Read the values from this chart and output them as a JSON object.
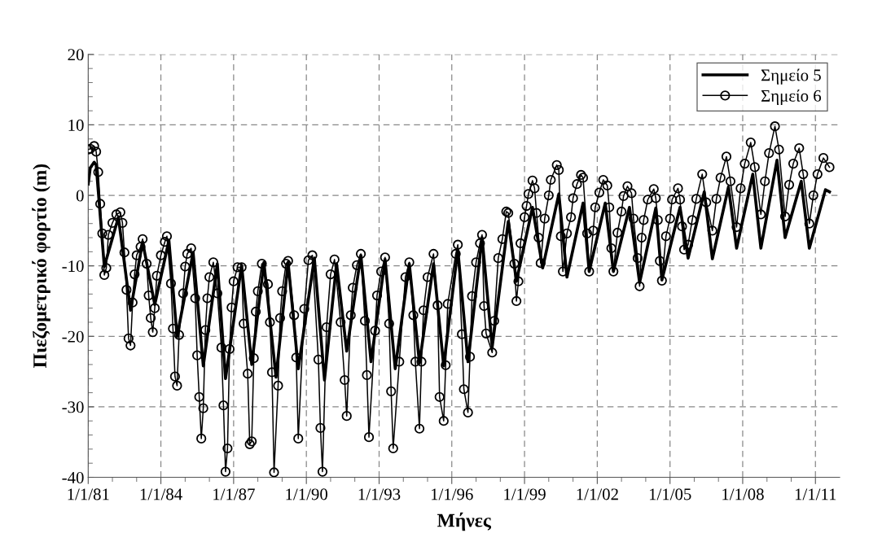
{
  "chart_data": {
    "type": "line",
    "xlabel": "Μήνες",
    "ylabel": "Πιεζομετρικό φορτίο (m)",
    "xlim": [
      "1981-01-01",
      "2012-01-01"
    ],
    "ylim": [
      -40,
      20
    ],
    "xticks": [
      {
        "value": "1981-01-01",
        "label": "1/1/81"
      },
      {
        "value": "1982-01-01",
        "label": null
      },
      {
        "value": "1983-01-01",
        "label": null
      },
      {
        "value": "1984-01-01",
        "label": "1/1/84"
      },
      {
        "value": "1985-01-01",
        "label": null
      },
      {
        "value": "1986-01-01",
        "label": null
      },
      {
        "value": "1987-01-01",
        "label": "1/1/87"
      },
      {
        "value": "1988-01-01",
        "label": null
      },
      {
        "value": "1989-01-01",
        "label": null
      },
      {
        "value": "1990-01-01",
        "label": "1/1/90"
      },
      {
        "value": "1991-01-01",
        "label": null
      },
      {
        "value": "1992-01-01",
        "label": null
      },
      {
        "value": "1993-01-01",
        "label": "1/1/93"
      },
      {
        "value": "1994-01-01",
        "label": null
      },
      {
        "value": "1995-01-01",
        "label": null
      },
      {
        "value": "1996-01-01",
        "label": "1/1/96"
      },
      {
        "value": "1997-01-01",
        "label": null
      },
      {
        "value": "1998-01-01",
        "label": null
      },
      {
        "value": "1999-01-01",
        "label": "1/1/99"
      },
      {
        "value": "2000-01-01",
        "label": null
      },
      {
        "value": "2001-01-01",
        "label": null
      },
      {
        "value": "2002-01-01",
        "label": "1/1/02"
      },
      {
        "value": "2003-01-01",
        "label": null
      },
      {
        "value": "2004-01-01",
        "label": null
      },
      {
        "value": "2005-01-01",
        "label": "1/1/05"
      },
      {
        "value": "2006-01-01",
        "label": null
      },
      {
        "value": "2007-01-01",
        "label": null
      },
      {
        "value": "2008-01-01",
        "label": "1/1/08"
      },
      {
        "value": "2009-01-01",
        "label": null
      },
      {
        "value": "2010-01-01",
        "label": null
      },
      {
        "value": "2011-01-01",
        "label": "1/1/11"
      }
    ],
    "yticks": [
      -40,
      {
        "value": -38,
        "label": null
      },
      {
        "value": -36,
        "label": null
      },
      {
        "value": -34,
        "label": null
      },
      {
        "value": -32,
        "label": null
      },
      -30,
      {
        "value": -28,
        "label": null
      },
      {
        "value": -26,
        "label": null
      },
      {
        "value": -24,
        "label": null
      },
      {
        "value": -22,
        "label": null
      },
      -20,
      {
        "value": -18,
        "label": null
      },
      {
        "value": -16,
        "label": null
      },
      {
        "value": -14,
        "label": null
      },
      {
        "value": -12,
        "label": null
      },
      -10,
      {
        "value": -8,
        "label": null
      },
      {
        "value": -6,
        "label": null
      },
      {
        "value": -4,
        "label": null
      },
      {
        "value": -2,
        "label": null
      },
      0,
      {
        "value": 2,
        "label": null
      },
      {
        "value": 4,
        "label": null
      },
      {
        "value": 6,
        "label": null
      },
      {
        "value": 8,
        "label": null
      },
      10,
      {
        "value": 12,
        "label": null
      },
      {
        "value": 14,
        "label": null
      },
      {
        "value": 16,
        "label": null
      },
      {
        "value": 18,
        "label": null
      },
      20
    ],
    "grid": true,
    "legend": "top right",
    "series": [
      {
        "name": "Σημείο 5",
        "color": "#000000",
        "marker": "none",
        "line_style": "solid",
        "x": [
          "1981-01",
          "1981-02",
          "1981-04",
          "1981-05",
          "1981-09",
          "1982-04",
          "1982-10",
          "1983-04",
          "1983-10",
          "1984-05",
          "1984-09",
          "1985-05",
          "1985-10",
          "1986-05",
          "1986-09",
          "1987-05",
          "1987-10",
          "1988-04",
          "1988-10",
          "1989-04",
          "1989-09",
          "1990-05",
          "1990-10",
          "1991-04",
          "1991-09",
          "1992-04",
          "1992-09",
          "1993-04",
          "1993-09",
          "1994-04",
          "1994-09",
          "1995-04",
          "1995-09",
          "1996-04",
          "1996-09",
          "1997-04",
          "1997-09",
          "1998-05",
          "1998-09",
          "1999-05",
          "1999-10",
          "2000-06",
          "2000-10",
          "2001-06",
          "2001-09",
          "2002-05",
          "2002-09",
          "2003-05",
          "2003-10",
          "2004-06",
          "2004-09",
          "2005-06",
          "2005-10",
          "2006-06",
          "2006-10",
          "2007-06",
          "2007-10",
          "2008-06",
          "2008-10",
          "2009-06",
          "2009-10",
          "2010-06",
          "2010-10",
          "2011-06",
          "2011-08"
        ],
        "values": [
          1.6,
          3.9,
          4.7,
          4.3,
          -10.1,
          -3.1,
          -16.3,
          -6.6,
          -15.5,
          -6.4,
          -20,
          -8.1,
          -24.2,
          -9.7,
          -26,
          -9.9,
          -24,
          -9.5,
          -25.8,
          -9.5,
          -24.6,
          -8.9,
          -26.2,
          -9.7,
          -22.1,
          -8.5,
          -23.6,
          -9.1,
          -24.6,
          -9.7,
          -23.8,
          -9.7,
          -24.2,
          -7.7,
          -23.6,
          -6.0,
          -21.5,
          -3.7,
          -12.2,
          -1.7,
          -10.3,
          0.2,
          -11.6,
          -1.1,
          -10.8,
          -1.1,
          -10.8,
          -1.7,
          -12.4,
          -1.8,
          -12.0,
          -1.7,
          -8.9,
          0.5,
          -9.0,
          1.2,
          -7.5,
          3.0,
          -7.5,
          5.0,
          -6.0,
          2.0,
          -7.5,
          0.8,
          0.5
        ]
      },
      {
        "name": "Σημείο 6",
        "color": "#000000",
        "marker": "circle",
        "line_style": "solid",
        "x": [
          "1981-01",
          "1981-02",
          "1981-04",
          "1981-05",
          "1981-06",
          "1981-07",
          "1981-08",
          "1981-09",
          "1981-10",
          "1981-11",
          "1982-01",
          "1982-03",
          "1982-05",
          "1982-06",
          "1982-07",
          "1982-08",
          "1982-09",
          "1982-10",
          "1982-11",
          "1982-12",
          "1983-01",
          "1983-03",
          "1983-04",
          "1983-06",
          "1983-07",
          "1983-08",
          "1983-09",
          "1983-10",
          "1983-11",
          "1984-01",
          "1984-03",
          "1984-04",
          "1984-06",
          "1984-07",
          "1984-08",
          "1984-09",
          "1984-10",
          "1984-12",
          "1985-01",
          "1985-02",
          "1985-04",
          "1985-06",
          "1985-07",
          "1985-08",
          "1985-09",
          "1985-10",
          "1985-11",
          "1985-12",
          "1986-01",
          "1986-03",
          "1986-05",
          "1986-07",
          "1986-08",
          "1986-09",
          "1986-10",
          "1986-11",
          "1986-12",
          "1987-01",
          "1987-03",
          "1987-05",
          "1987-06",
          "1987-08",
          "1987-09",
          "1987-10",
          "1987-11",
          "1987-12",
          "1988-01",
          "1988-03",
          "1988-06",
          "1988-07",
          "1988-08",
          "1988-09",
          "1988-11",
          "1988-12",
          "1989-01",
          "1989-03",
          "1989-04",
          "1989-07",
          "1989-08",
          "1989-09",
          "1989-12",
          "1990-02",
          "1990-04",
          "1990-07",
          "1990-08",
          "1990-09",
          "1990-11",
          "1991-01",
          "1991-03",
          "1991-06",
          "1991-08",
          "1991-09",
          "1991-11",
          "1991-12",
          "1992-02",
          "1992-04",
          "1992-06",
          "1992-07",
          "1992-08",
          "1992-11",
          "1992-12",
          "1993-02",
          "1993-04",
          "1993-06",
          "1993-07",
          "1993-08",
          "1993-11",
          "1994-02",
          "1994-04",
          "1994-06",
          "1994-07",
          "1994-09",
          "1994-10",
          "1994-11",
          "1995-01",
          "1995-04",
          "1995-06",
          "1995-07",
          "1995-09",
          "1995-10",
          "1995-11",
          "1996-03",
          "1996-04",
          "1996-06",
          "1996-07",
          "1996-09",
          "1996-10",
          "1996-11",
          "1997-01",
          "1997-03",
          "1997-04",
          "1997-05",
          "1997-06",
          "1997-09",
          "1997-10",
          "1997-12",
          "1998-02",
          "1998-04",
          "1998-05",
          "1998-08",
          "1998-09",
          "1998-10",
          "1998-11",
          "1999-01",
          "1999-02",
          "1999-03",
          "1999-05",
          "1999-06",
          "1999-07",
          "1999-08",
          "1999-09",
          "1999-11",
          "2000-01",
          "2000-02",
          "2000-05",
          "2000-06",
          "2000-07",
          "2000-08",
          "2000-10",
          "2000-12",
          "2001-01",
          "2001-03",
          "2001-05",
          "2001-06",
          "2001-08",
          "2001-09",
          "2001-11",
          "2001-12",
          "2002-02",
          "2002-04",
          "2002-06",
          "2002-07",
          "2002-08",
          "2002-09",
          "2002-11",
          "2003-01",
          "2003-02",
          "2003-04",
          "2003-06",
          "2003-07",
          "2003-09",
          "2003-10",
          "2003-11",
          "2003-12",
          "2004-02",
          "2004-05",
          "2004-06",
          "2004-07",
          "2004-08",
          "2004-09",
          "2004-11",
          "2005-01",
          "2005-02",
          "2005-05",
          "2005-06",
          "2005-07",
          "2005-08",
          "2005-10",
          "2005-12",
          "2006-02",
          "2006-05",
          "2006-07",
          "2006-10",
          "2006-12",
          "2007-02",
          "2007-05",
          "2007-07",
          "2007-10",
          "2007-12",
          "2008-02",
          "2008-05",
          "2008-07",
          "2008-10",
          "2008-12",
          "2009-02",
          "2009-05",
          "2009-07",
          "2009-10",
          "2009-12",
          "2010-02",
          "2010-05",
          "2010-07",
          "2010-10",
          "2010-12",
          "2011-02",
          "2011-05",
          "2011-08"
        ],
        "values": [
          6.5,
          6.6,
          7.0,
          6.2,
          3.3,
          -1.2,
          -5.4,
          -11.3,
          -10.3,
          -5.6,
          -3.9,
          -2.7,
          -2.4,
          -3.9,
          -8.1,
          -13.4,
          -20.3,
          -21.3,
          -15.2,
          -11.2,
          -8.5,
          -7.3,
          -6.2,
          -9.7,
          -14.2,
          -17.4,
          -19.4,
          -16.0,
          -11.4,
          -8.5,
          -6.6,
          -5.8,
          -12.5,
          -18.9,
          -25.7,
          -27.0,
          -19.8,
          -13.9,
          -10.1,
          -8.3,
          -7.5,
          -14.6,
          -22.7,
          -28.6,
          -34.5,
          -30.2,
          -19.1,
          -14.6,
          -11.6,
          -9.5,
          -13.9,
          -21.6,
          -29.8,
          -39.2,
          -35.9,
          -21.8,
          -15.9,
          -12.2,
          -10.2,
          -10.2,
          -18.2,
          -25.3,
          -35.3,
          -34.9,
          -23.1,
          -16.5,
          -13.6,
          -9.7,
          -12.6,
          -18.0,
          -25.1,
          -39.3,
          -27.0,
          -17.4,
          -13.6,
          -9.7,
          -9.3,
          -17,
          -23,
          -34.5,
          -16.1,
          -9.2,
          -8.5,
          -23.3,
          -33,
          -39.2,
          -18.7,
          -11.2,
          -9.1,
          -18,
          -26.2,
          -31.3,
          -17,
          -13.1,
          -9.9,
          -8.3,
          -17.8,
          -25.5,
          -34.3,
          -19.2,
          -14.2,
          -10.8,
          -8.8,
          -18.2,
          -27.8,
          -35.9,
          -23.6,
          -11.6,
          -9.5,
          -17,
          -23.6,
          -33.1,
          -23.6,
          -16.3,
          -11.6,
          -8.3,
          -15.6,
          -28.6,
          -32,
          -24.1,
          -15.4,
          -8.3,
          -7.0,
          -19.7,
          -27.5,
          -30.8,
          -22.9,
          -14.3,
          -9.5,
          -6.8,
          -5.6,
          -15.7,
          -19.6,
          -22.3,
          -17.8,
          -8.9,
          -6.2,
          -2.3,
          -2.5,
          -9.7,
          -15.0,
          -12.2,
          -6.8,
          -3.1,
          -1.5,
          0.2,
          2.1,
          1.0,
          -2.5,
          -6.0,
          -9.6,
          -3.3,
          0.0,
          2.2,
          4.3,
          3.6,
          -5.8,
          -10.8,
          -5.4,
          -3.1,
          -0.4,
          1.6,
          2.9,
          2.5,
          -5.4,
          -10.8,
          -5.0,
          -1.7,
          0.4,
          2.2,
          1.4,
          -1.7,
          -7.5,
          -10.8,
          -5.3,
          -2.3,
          -0.1,
          1.3,
          0.3,
          -3.3,
          -8.9,
          -12.9,
          -6.0,
          -3.5,
          -0.6,
          0.9,
          -0.4,
          -3.5,
          -9.3,
          -12.1,
          -5.8,
          -3.3,
          -0.6,
          1.0,
          -0.6,
          -4.4,
          -7.7,
          -7.0,
          -3.5,
          -0.5,
          3.0,
          -1.0,
          -5.0,
          -0.5,
          2.5,
          5.5,
          2.0,
          -4.5,
          1.0,
          4.5,
          7.5,
          4.0,
          -2.7,
          2.0,
          6.0,
          9.8,
          6.5,
          -3.0,
          1.5,
          4.5,
          6.7,
          3.0,
          -4.0,
          0.0,
          3.0,
          5.3,
          4.0
        ]
      }
    ]
  }
}
